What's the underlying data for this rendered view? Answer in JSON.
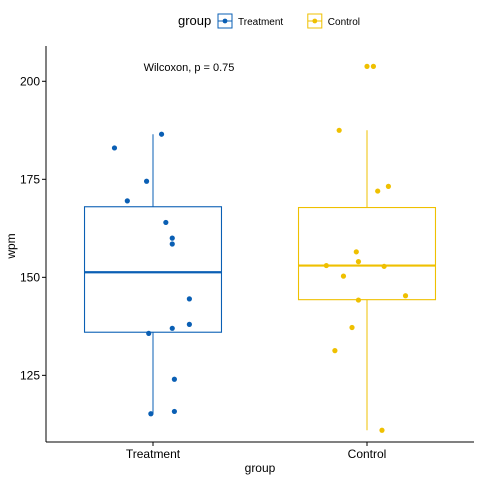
{
  "chart_data": {
    "type": "box",
    "xlabel": "group",
    "ylabel": "wpm",
    "ylim": [
      108,
      209
    ],
    "yticks": [
      125,
      150,
      175,
      200
    ],
    "categories": [
      "Treatment",
      "Control"
    ],
    "legend": {
      "title": "group",
      "position": "top",
      "entries": [
        "Treatment",
        "Control"
      ]
    },
    "annotation": "Wilcoxon, p = 0.75",
    "grid": false,
    "colors": {
      "Treatment": "#0a5fb4",
      "Control": "#efc000"
    },
    "series": [
      {
        "name": "Treatment",
        "box": {
          "q1": 136,
          "median": 151.3,
          "q3": 168,
          "whisker_low": 115,
          "whisker_high": 186.5
        },
        "points": [
          [
            -0.18,
            183
          ],
          [
            0.04,
            186.5
          ],
          [
            -0.12,
            169.5
          ],
          [
            -0.03,
            174.5
          ],
          [
            0.06,
            164
          ],
          [
            0.09,
            160
          ],
          [
            0.09,
            158.5
          ],
          [
            0.17,
            144.5
          ],
          [
            0.17,
            138
          ],
          [
            0.09,
            137
          ],
          [
            -0.02,
            135.7
          ],
          [
            0.1,
            124
          ],
          [
            -0.01,
            115.2
          ],
          [
            0.1,
            115.8
          ]
        ]
      },
      {
        "name": "Control",
        "box": {
          "q1": 144.3,
          "median": 153,
          "q3": 167.8,
          "whisker_low": 111,
          "whisker_high": 187.5
        },
        "points": [
          [
            0.0,
            203.8
          ],
          [
            0.03,
            203.8
          ],
          [
            -0.13,
            187.5
          ],
          [
            0.05,
            172
          ],
          [
            0.1,
            173.2
          ],
          [
            -0.05,
            156.5
          ],
          [
            -0.04,
            154
          ],
          [
            -0.19,
            153
          ],
          [
            -0.11,
            150.3
          ],
          [
            0.08,
            152.8
          ],
          [
            -0.04,
            144.2
          ],
          [
            0.18,
            145.3
          ],
          [
            -0.07,
            137.2
          ],
          [
            -0.15,
            131.3
          ],
          [
            0.07,
            111
          ]
        ]
      }
    ]
  }
}
